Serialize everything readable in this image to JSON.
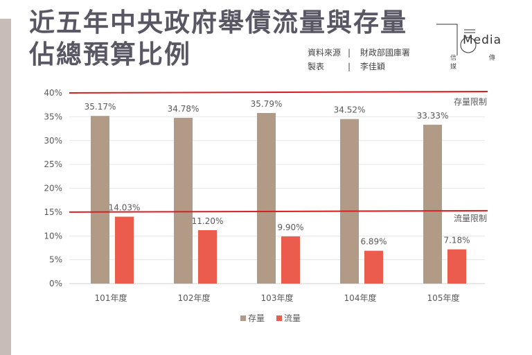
{
  "title_line1": "近五年中央政府舉債流量與存量",
  "title_line2": "佔總預算比例",
  "source": {
    "label": "資料來源",
    "value": "財政部國庫署",
    "maker_label": "製表",
    "maker": "李佳穎"
  },
  "logo": {
    "text": "Media",
    "sub": "信 傳 媒"
  },
  "colors": {
    "stock": "#b29b86",
    "flow": "#ec5c4c",
    "limit": "#d41f25"
  },
  "chart_data": {
    "type": "bar",
    "categories": [
      "101年度",
      "102年度",
      "103年度",
      "104年度",
      "105年度"
    ],
    "series": [
      {
        "name": "存量",
        "values": [
          35.17,
          34.78,
          35.79,
          34.52,
          33.33
        ],
        "labels": [
          "35.17%",
          "34.78%",
          "35.79%",
          "34.52%",
          "33.33%"
        ]
      },
      {
        "name": "流量",
        "values": [
          14.03,
          11.2,
          9.9,
          6.89,
          7.18
        ],
        "labels": [
          "14.03%",
          "11.20%",
          "9.90%",
          "6.89%",
          "7.18%"
        ]
      }
    ],
    "ylim": [
      0,
      40
    ],
    "yticks": [
      "0%",
      "5%",
      "10%",
      "15%",
      "20%",
      "25%",
      "30%",
      "35%",
      "40%"
    ],
    "reference_lines": [
      {
        "name": "存量限制",
        "value": 40
      },
      {
        "name": "流量限制",
        "value": 15
      }
    ],
    "legend": "bottom-center",
    "grid": true
  }
}
